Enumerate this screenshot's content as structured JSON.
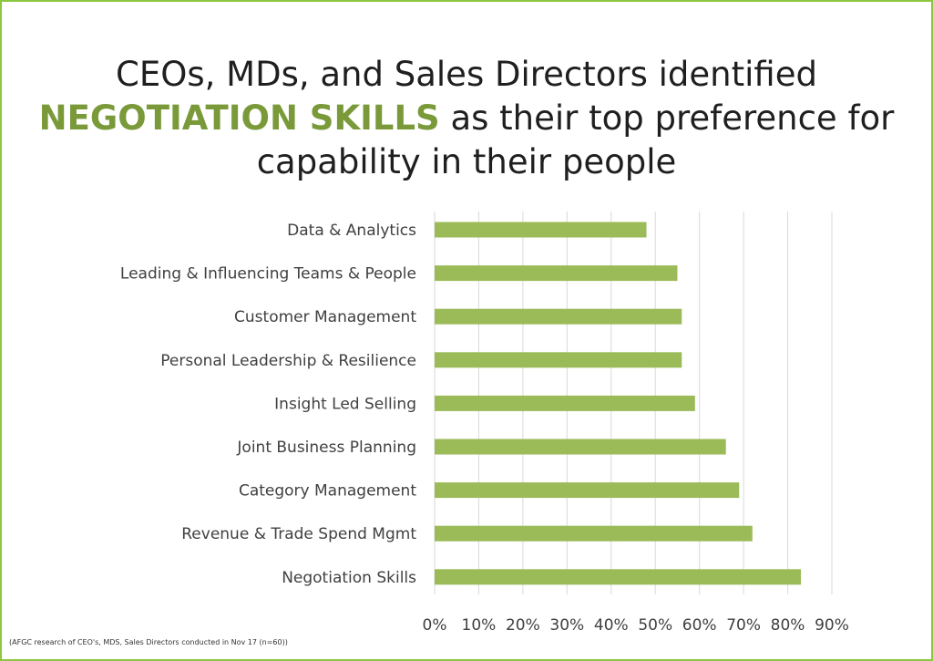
{
  "title": {
    "line1": "CEOs, MDs, and Sales Directors identified",
    "highlight": "NEGOTIATION SKILLS",
    "line2_rest": " as their top preference for",
    "line3": "capability in their people"
  },
  "footnote": "(AFGC research of CEO's, MDS, Sales Directors conducted in Nov 17 (n=60))",
  "colors": {
    "bar": "#9bbb59",
    "highlight": "#7a9a3a",
    "border": "#8dc63f",
    "grid": "#d9d9d9"
  },
  "chart_data": {
    "type": "bar",
    "orientation": "horizontal",
    "categories": [
      "Data & Analytics",
      "Leading & Influencing Teams & People",
      "Customer Management",
      "Personal Leadership & Resilience",
      "Insight Led Selling",
      "Joint Business Planning",
      "Category Management",
      "Revenue & Trade Spend Mgmt",
      "Negotiation Skills"
    ],
    "values": [
      0.48,
      0.55,
      0.56,
      0.56,
      0.59,
      0.66,
      0.69,
      0.72,
      0.83
    ],
    "xlim": [
      0,
      0.9
    ],
    "xticks": [
      "0%",
      "10%",
      "20%",
      "30%",
      "40%",
      "50%",
      "60%",
      "70%",
      "80%",
      "90%"
    ],
    "grid": true,
    "legend": "none"
  }
}
